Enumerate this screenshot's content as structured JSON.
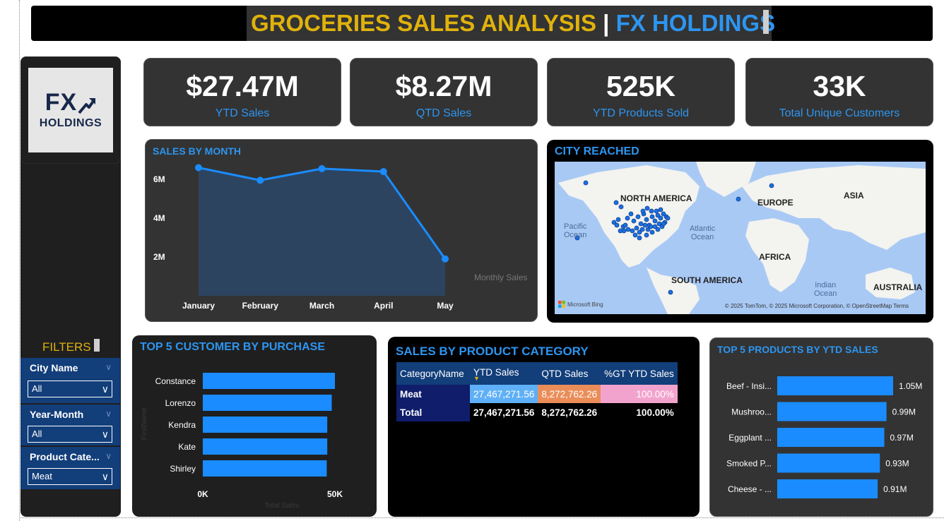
{
  "header": {
    "title_main": "GROCERIES SALES ANALYSIS",
    "title_sep": "|",
    "title_company": "FX HOLDINGS"
  },
  "logo": {
    "fx": "FX",
    "holdings": "HOLDINGS"
  },
  "colors": {
    "accent_blue": "#2d95f0",
    "accent_gold": "#e0b20c",
    "card_bg": "#333333",
    "bar_blue": "#1a8cff"
  },
  "kpis": [
    {
      "value": "$27.47M",
      "label": "YTD Sales"
    },
    {
      "value": "$8.27M",
      "label": "QTD Sales"
    },
    {
      "value": "525K",
      "label": "YTD Products Sold"
    },
    {
      "value": "33K",
      "label": "Total Unique Customers"
    }
  ],
  "filters": {
    "title": "FILTERS",
    "slicers": [
      {
        "label": "City Name",
        "value": "All"
      },
      {
        "label": "Year-Month",
        "value": "All"
      },
      {
        "label": "Product Cate...",
        "value": "Meat"
      }
    ]
  },
  "map": {
    "title": "CITY REACHED",
    "labels": {
      "north_america": "NORTH AMERICA",
      "europe": "EUROPE",
      "asia": "ASIA",
      "africa": "AFRICA",
      "south_america": "SOUTH AMERICA",
      "australia": "AUSTRALIA",
      "pacific": "Pacific\nOcean",
      "atlantic": "Atlantic\nOcean",
      "indian": "Indian\nOcean"
    },
    "attribution": "© 2025 TomTom, © 2025 Microsoft Corporation, © OpenStreetMap  Terms",
    "brand": "Microsoft Bing"
  },
  "category_table": {
    "title": "SALES BY PRODUCT CATEGORY",
    "headers": [
      "CategoryName",
      "YTD Sales",
      "QTD Sales",
      "%GT YTD Sales"
    ],
    "rows": [
      [
        "Meat",
        "27,467,271.56",
        "8,272,762.26",
        "100.00%"
      ]
    ],
    "total": [
      "Total",
      "27,467,271.56",
      "8,272,762.26",
      "100.00%"
    ]
  },
  "chart_data": [
    {
      "type": "area",
      "title": "SALES BY MONTH",
      "categories": [
        "January",
        "February",
        "March",
        "April",
        "May"
      ],
      "series": [
        {
          "name": "Monthly Sales",
          "values": [
            6.6,
            5.95,
            6.55,
            6.4,
            1.9
          ]
        }
      ],
      "yticks": [
        "2M",
        "4M",
        "6M"
      ],
      "ylim": [
        0,
        7.2
      ],
      "unit": "M",
      "legend": "Monthly Sales",
      "grid": false
    },
    {
      "type": "bar",
      "orientation": "horizontal",
      "title": "TOP 5 CUSTOMER BY PURCHASE",
      "categories": [
        "Constance",
        "Lorenzo",
        "Kendra",
        "Kate",
        "Shirley"
      ],
      "values": [
        50000,
        48800,
        47100,
        47100,
        46900
      ],
      "xticks": [
        "0K",
        "50K"
      ],
      "xlim": [
        0,
        50000
      ],
      "xlabel": "Total Sales",
      "ylabel": "FirstName",
      "grid": false
    },
    {
      "type": "bar",
      "orientation": "horizontal",
      "title": "TOP 5 PRODUCTS BY YTD SALES",
      "categories": [
        "Beef - Insi...",
        "Mushroo...",
        "Eggplant ...",
        "Smoked P...",
        "Cheese - ..."
      ],
      "values": [
        1.05,
        0.99,
        0.97,
        0.93,
        0.91
      ],
      "data_labels": [
        "1.05M",
        "0.99M",
        "0.97M",
        "0.93M",
        "0.91M"
      ],
      "unit": "M",
      "xlim": [
        0,
        1.05
      ],
      "grid": false
    }
  ]
}
